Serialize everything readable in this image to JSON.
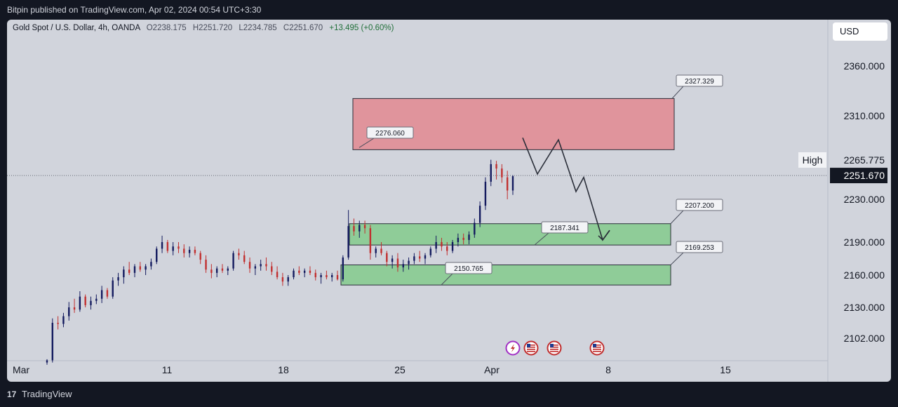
{
  "header": {
    "published": "Bitpin published on TradingView.com, Apr 02, 2024 00:54 UTC+3:30"
  },
  "symbol": {
    "name": "Gold Spot / U.S. Dollar, 4h, OANDA",
    "open": "O2238.175",
    "high": "H2251.720",
    "low": "L2234.785",
    "close": "C2251.670",
    "change": "+13.495 (+0.60%)"
  },
  "currency": "USD",
  "footer": {
    "logo": "17",
    "brand": "TradingView"
  },
  "colors": {
    "up": "#131a5e",
    "down": "#c12f2f",
    "supply_zone": "#e0949c",
    "demand_zone": "#8fcc98",
    "background": "#d1d4dc",
    "frame": "#131722"
  },
  "events_icons": [
    "lightning-icon",
    "us-flag-icon",
    "us-flag-icon",
    "us-flag-icon"
  ],
  "chart_data": {
    "type": "candlestick",
    "title": "Gold Spot / U.S. Dollar, 4h, OANDA",
    "x_ticks": [
      "Mar",
      "11",
      "18",
      "25",
      "Apr",
      "8",
      "15"
    ],
    "y_ticks": [
      "2360.000",
      "2310.000",
      "2230.000",
      "2190.000",
      "2160.000",
      "2130.000",
      "2102.000"
    ],
    "last_price": "2251.670",
    "high_label": "High",
    "high_value": "2265.775",
    "zones": [
      {
        "name": "supply",
        "from": 2276.06,
        "to": 2327.329,
        "label_low": "2276.060",
        "label_high": "2327.329"
      },
      {
        "name": "demand-upper",
        "from": 2187.341,
        "to": 2207.2,
        "label_low": "2187.341",
        "label_high": "2207.200"
      },
      {
        "name": "demand-lower",
        "from": 2150.765,
        "to": 2169.253,
        "label_low": "2150.765",
        "label_high": "2169.253"
      }
    ],
    "projection": [
      2288,
      2253,
      2286,
      2237,
      2250,
      2192,
      2201
    ],
    "candles": [
      [
        2080,
        2083,
        2078,
        2082
      ],
      [
        2082,
        2120,
        2080,
        2116
      ],
      [
        2116,
        2122,
        2110,
        2115
      ],
      [
        2115,
        2125,
        2112,
        2122
      ],
      [
        2122,
        2135,
        2118,
        2130
      ],
      [
        2130,
        2138,
        2125,
        2128
      ],
      [
        2128,
        2145,
        2126,
        2140
      ],
      [
        2140,
        2142,
        2130,
        2132
      ],
      [
        2132,
        2140,
        2128,
        2136
      ],
      [
        2136,
        2142,
        2133,
        2138
      ],
      [
        2138,
        2150,
        2134,
        2146
      ],
      [
        2146,
        2148,
        2138,
        2140
      ],
      [
        2140,
        2158,
        2138,
        2155
      ],
      [
        2155,
        2162,
        2150,
        2158
      ],
      [
        2158,
        2168,
        2152,
        2165
      ],
      [
        2165,
        2172,
        2160,
        2162
      ],
      [
        2162,
        2170,
        2158,
        2168
      ],
      [
        2168,
        2172,
        2163,
        2165
      ],
      [
        2165,
        2170,
        2160,
        2168
      ],
      [
        2168,
        2175,
        2165,
        2172
      ],
      [
        2172,
        2186,
        2170,
        2184
      ],
      [
        2184,
        2196,
        2180,
        2190
      ],
      [
        2190,
        2192,
        2180,
        2182
      ],
      [
        2182,
        2190,
        2178,
        2186
      ],
      [
        2186,
        2190,
        2180,
        2184
      ],
      [
        2184,
        2188,
        2176,
        2180
      ],
      [
        2180,
        2186,
        2176,
        2183
      ],
      [
        2183,
        2186,
        2178,
        2180
      ],
      [
        2180,
        2182,
        2170,
        2174
      ],
      [
        2174,
        2178,
        2162,
        2165
      ],
      [
        2165,
        2170,
        2157,
        2162
      ],
      [
        2162,
        2168,
        2158,
        2166
      ],
      [
        2166,
        2170,
        2162,
        2164
      ],
      [
        2164,
        2168,
        2160,
        2166
      ],
      [
        2166,
        2182,
        2164,
        2180
      ],
      [
        2180,
        2184,
        2174,
        2178
      ],
      [
        2178,
        2182,
        2170,
        2172
      ],
      [
        2172,
        2176,
        2162,
        2166
      ],
      [
        2166,
        2170,
        2160,
        2168
      ],
      [
        2168,
        2174,
        2164,
        2170
      ],
      [
        2170,
        2176,
        2164,
        2168
      ],
      [
        2168,
        2172,
        2160,
        2163
      ],
      [
        2163,
        2168,
        2156,
        2158
      ],
      [
        2158,
        2162,
        2150,
        2154
      ],
      [
        2154,
        2160,
        2150,
        2158
      ],
      [
        2158,
        2166,
        2156,
        2164
      ],
      [
        2164,
        2168,
        2160,
        2162
      ],
      [
        2162,
        2166,
        2158,
        2164
      ],
      [
        2164,
        2168,
        2160,
        2162
      ],
      [
        2162,
        2165,
        2155,
        2158
      ],
      [
        2158,
        2162,
        2152,
        2160
      ],
      [
        2160,
        2164,
        2156,
        2158
      ],
      [
        2158,
        2162,
        2154,
        2160
      ],
      [
        2160,
        2164,
        2155,
        2156
      ],
      [
        2156,
        2178,
        2154,
        2176
      ],
      [
        2176,
        2220,
        2174,
        2205
      ],
      [
        2205,
        2212,
        2196,
        2200
      ],
      [
        2200,
        2210,
        2194,
        2206
      ],
      [
        2206,
        2210,
        2198,
        2203
      ],
      [
        2203,
        2206,
        2174,
        2180
      ],
      [
        2180,
        2186,
        2176,
        2184
      ],
      [
        2184,
        2190,
        2178,
        2180
      ],
      [
        2180,
        2182,
        2168,
        2172
      ],
      [
        2172,
        2178,
        2166,
        2175
      ],
      [
        2175,
        2180,
        2163,
        2167
      ],
      [
        2167,
        2174,
        2163,
        2170
      ],
      [
        2170,
        2176,
        2165,
        2173
      ],
      [
        2173,
        2180,
        2170,
        2177
      ],
      [
        2177,
        2182,
        2172,
        2175
      ],
      [
        2175,
        2180,
        2170,
        2178
      ],
      [
        2178,
        2186,
        2176,
        2184
      ],
      [
        2184,
        2196,
        2180,
        2190
      ],
      [
        2190,
        2194,
        2182,
        2186
      ],
      [
        2186,
        2190,
        2178,
        2182
      ],
      [
        2182,
        2192,
        2180,
        2190
      ],
      [
        2190,
        2198,
        2186,
        2194
      ],
      [
        2194,
        2198,
        2188,
        2192
      ],
      [
        2192,
        2200,
        2188,
        2197
      ],
      [
        2197,
        2212,
        2194,
        2208
      ],
      [
        2208,
        2228,
        2204,
        2224
      ],
      [
        2224,
        2250,
        2220,
        2246
      ],
      [
        2246,
        2266,
        2242,
        2262
      ],
      [
        2262,
        2265,
        2248,
        2258
      ],
      [
        2258,
        2262,
        2245,
        2250
      ],
      [
        2250,
        2256,
        2230,
        2238
      ],
      [
        2238,
        2252,
        2234,
        2251
      ]
    ]
  }
}
